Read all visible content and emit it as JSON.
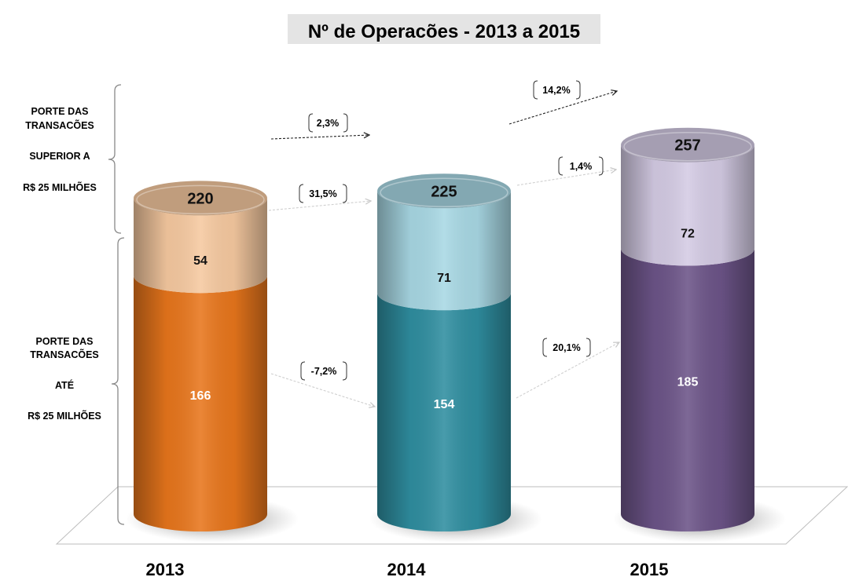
{
  "chart_data": {
    "type": "bar",
    "subtype": "stacked-3d-cylinder",
    "title": "Nº de Operacões  - 2013 a 2015",
    "categories": [
      "2013",
      "2014",
      "2015"
    ],
    "series": [
      {
        "name": "PORTE DAS TRANSACÕES ATÉ R$ 25 MILHÕES",
        "label_lines": [
          "PORTE DAS",
          "TRANSACÕES",
          "ATÉ",
          "R$ 25 MILHÕES"
        ],
        "values": [
          166,
          154,
          185
        ],
        "colors": [
          "#e8761c",
          "#2f8ea0",
          "#6c5488"
        ]
      },
      {
        "name": "PORTE DAS TRANSACÕES SUPERIOR A R$ 25 MILHÕES",
        "label_lines": [
          "PORTE DAS",
          "TRANSACÕES",
          "SUPERIOR A",
          "R$ 25 MILHÕES"
        ],
        "values": [
          54,
          71,
          72
        ],
        "colors": [
          "#f6c9a0",
          "#a8d8e4",
          "#d4cbe4"
        ]
      }
    ],
    "totals": [
      220,
      225,
      257
    ],
    "value_labels": {
      "lower": [
        "166",
        "154",
        "185"
      ],
      "upper": [
        "54",
        "71",
        "72"
      ],
      "totals": [
        "220",
        "225",
        "257"
      ]
    },
    "growth": {
      "total": [
        "2,3%",
        "14,2%"
      ],
      "upper": [
        "31,5%",
        "1,4%"
      ],
      "lower": [
        "-7,2%",
        "20,1%"
      ]
    },
    "xlabel": "",
    "ylabel": "",
    "ylim": [
      0,
      260
    ],
    "grid": false,
    "legend": "left-braces"
  }
}
